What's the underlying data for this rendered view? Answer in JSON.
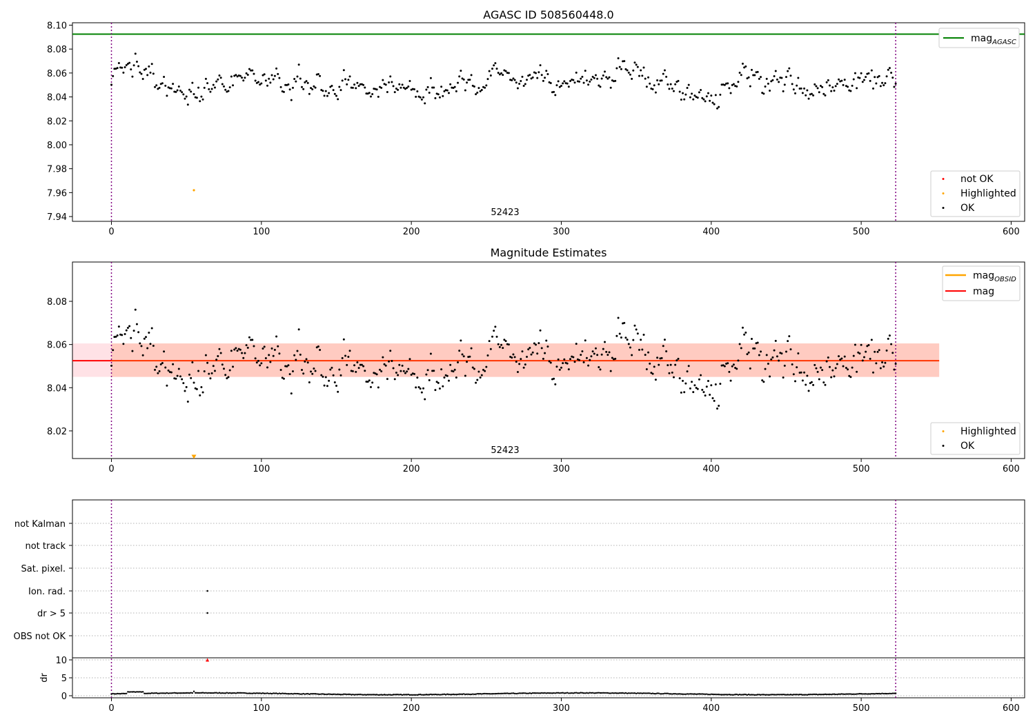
{
  "figure": {
    "panels": [
      {
        "title": "AGASC ID 508560448.0",
        "x_ticks": [
          "0",
          "100",
          "200",
          "300",
          "400",
          "500",
          "600"
        ],
        "y_ticks": [
          "7.94",
          "7.96",
          "7.98",
          "8.00",
          "8.02",
          "8.04",
          "8.06",
          "8.08",
          "8.10"
        ],
        "obsid_label": "52423",
        "legend_lines": [
          {
            "label": "mag",
            "sub": "AGASC",
            "color": "#008000"
          }
        ],
        "legend_points": [
          {
            "label": "not OK",
            "color": "#ff0000"
          },
          {
            "label": "Highlighted",
            "color": "#ffa500"
          },
          {
            "label": "OK",
            "color": "#000000"
          }
        ]
      },
      {
        "title": "Magnitude Estimates",
        "x_ticks": [
          "0",
          "100",
          "200",
          "300",
          "400",
          "500",
          "600"
        ],
        "y_ticks": [
          "8.02",
          "8.04",
          "8.06",
          "8.08"
        ],
        "obsid_label": "52423",
        "legend_lines": [
          {
            "label": "mag",
            "sub": "OBSID",
            "color": "#ffa500"
          },
          {
            "label": "mag",
            "sub": "",
            "color": "#ff0000"
          }
        ],
        "legend_points": [
          {
            "label": "Highlighted",
            "color": "#ffa500"
          },
          {
            "label": "OK",
            "color": "#000000"
          }
        ]
      },
      {
        "title": "",
        "flag_labels": [
          "not Kalman",
          "not track",
          "Sat. pixel.",
          "Ion. rad.",
          "dr > 5",
          "OBS not OK"
        ],
        "dr_ticks": [
          "10",
          "5",
          "0"
        ],
        "dr_label": "dr",
        "x_ticks": [
          "0",
          "100",
          "200",
          "300",
          "400",
          "500",
          "600"
        ]
      }
    ]
  },
  "chart_data": [
    {
      "type": "scatter",
      "title": "AGASC ID 508560448.0",
      "xlim": [
        -26,
        609
      ],
      "ylim": [
        7.936,
        8.102
      ],
      "mag_agasc": 8.0925,
      "obs_boundaries": [
        0,
        523
      ],
      "obsid": "52423",
      "n_points": 524,
      "highlighted_point": {
        "x": 55,
        "y": 7.962
      },
      "ok_points_profile": [
        [
          0,
          8.068
        ],
        [
          10,
          8.063
        ],
        [
          25,
          8.058
        ],
        [
          35,
          8.047
        ],
        [
          55,
          8.049
        ],
        [
          70,
          8.054
        ],
        [
          100,
          8.056
        ],
        [
          140,
          8.051
        ],
        [
          180,
          8.051
        ],
        [
          195,
          8.048
        ],
        [
          215,
          8.04
        ],
        [
          235,
          8.046
        ],
        [
          255,
          8.058
        ],
        [
          280,
          8.055
        ],
        [
          300,
          8.051
        ],
        [
          340,
          8.056
        ],
        [
          368,
          8.056
        ],
        [
          385,
          8.041
        ],
        [
          405,
          8.039
        ],
        [
          415,
          8.052
        ],
        [
          440,
          8.056
        ],
        [
          455,
          8.049
        ],
        [
          465,
          8.043
        ],
        [
          490,
          8.051
        ],
        [
          510,
          8.057
        ],
        [
          523,
          8.055
        ]
      ],
      "legend": "top-right / bottom-right",
      "grid": false
    },
    {
      "type": "scatter",
      "title": "Magnitude Estimates",
      "xlim": [
        -26,
        609
      ],
      "ylim": [
        8.0072,
        8.0982
      ],
      "mag": 8.0525,
      "mag_band": [
        8.045,
        8.0605
      ],
      "band_x": [
        -26,
        552
      ],
      "obs_boundaries": [
        0,
        523
      ],
      "obsid": "52423",
      "highlighted_marker": {
        "x": 55,
        "y": 8.008,
        "marker": "triangle-down"
      },
      "legend": "top-right / bottom-right",
      "grid": false
    },
    {
      "type": "scatter",
      "title": "",
      "xlim": [
        -26,
        609
      ],
      "flags": [
        "not Kalman",
        "not track",
        "Sat. pixel.",
        "Ion. rad.",
        "dr > 5",
        "OBS not OK"
      ],
      "flagged_points": [
        {
          "x": 64,
          "flags": [
            "Ion. rad.",
            "dr > 5"
          ]
        }
      ],
      "dr_ylim": [
        -0.3,
        10.8
      ],
      "dr_typical_range": [
        0.2,
        1.2
      ],
      "dr_outlier": {
        "x": 64,
        "y": 10,
        "marker": "triangle-up",
        "color": "#ff0000"
      },
      "grid": true
    }
  ]
}
